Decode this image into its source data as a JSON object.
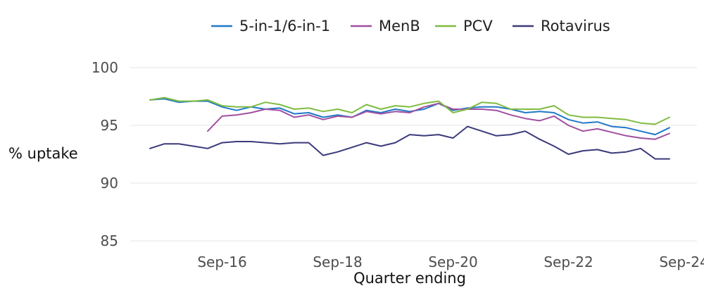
{
  "chart_data": {
    "type": "line",
    "xlabel": "Quarter ending",
    "ylabel": "% uptake",
    "ylim": [
      84,
      101
    ],
    "y_ticks": [
      85,
      90,
      95,
      100
    ],
    "x_ticks": [
      "Sep-16",
      "Sep-18",
      "Sep-20",
      "Sep-22",
      "Sep-24"
    ],
    "grid": "horizontal",
    "legend_position": "top",
    "quarters": [
      "Jun-15",
      "Sep-15",
      "Dec-15",
      "Mar-16",
      "Jun-16",
      "Sep-16",
      "Dec-16",
      "Mar-17",
      "Jun-17",
      "Sep-17",
      "Dec-17",
      "Mar-18",
      "Jun-18",
      "Sep-18",
      "Dec-18",
      "Mar-19",
      "Jun-19",
      "Sep-19",
      "Dec-19",
      "Mar-20",
      "Jun-20",
      "Sep-20",
      "Dec-20",
      "Mar-21",
      "Jun-21",
      "Sep-21",
      "Dec-21",
      "Mar-22",
      "Jun-22",
      "Sep-22",
      "Dec-22",
      "Mar-23",
      "Jun-23",
      "Sep-23",
      "Dec-23",
      "Mar-24",
      "Jun-24",
      "Sep-24"
    ],
    "series": [
      {
        "name": "5-in-1/6-in-1",
        "color": "#1f78c8",
        "values": [
          97.2,
          97.3,
          97.0,
          97.1,
          97.1,
          96.6,
          96.3,
          96.6,
          96.4,
          96.5,
          96.0,
          96.1,
          95.7,
          95.9,
          95.7,
          96.3,
          96.1,
          96.4,
          96.2,
          96.4,
          96.9,
          96.3,
          96.5,
          96.6,
          96.6,
          96.4,
          96.1,
          96.2,
          96.1,
          95.5,
          95.2,
          95.3,
          94.9,
          94.8,
          94.5,
          94.2,
          94.8,
          null
        ]
      },
      {
        "name": "MenB",
        "color": "#a04fa0",
        "values": [
          null,
          null,
          null,
          null,
          94.5,
          95.8,
          95.9,
          96.1,
          96.4,
          96.3,
          95.7,
          95.9,
          95.5,
          95.8,
          95.7,
          96.2,
          96.0,
          96.2,
          96.1,
          96.6,
          96.9,
          96.4,
          96.4,
          96.4,
          96.3,
          95.9,
          95.6,
          95.4,
          95.8,
          95.0,
          94.5,
          94.7,
          94.4,
          94.1,
          93.9,
          93.8,
          94.3,
          null
        ]
      },
      {
        "name": "PCV",
        "color": "#7fbc41",
        "values": [
          97.2,
          97.4,
          97.1,
          97.1,
          97.2,
          96.7,
          96.6,
          96.6,
          97.0,
          96.8,
          96.4,
          96.5,
          96.2,
          96.4,
          96.1,
          96.8,
          96.4,
          96.7,
          96.6,
          96.9,
          97.1,
          96.1,
          96.4,
          97.0,
          96.9,
          96.4,
          96.4,
          96.4,
          96.7,
          95.9,
          95.7,
          95.7,
          95.6,
          95.5,
          95.2,
          95.1,
          95.7,
          null
        ]
      },
      {
        "name": "Rotavirus",
        "color": "#3b3a7a",
        "values": [
          93.0,
          93.4,
          93.4,
          93.2,
          93.0,
          93.5,
          93.6,
          93.6,
          93.5,
          93.4,
          93.5,
          93.5,
          92.4,
          92.7,
          93.1,
          93.5,
          93.2,
          93.5,
          94.2,
          94.1,
          94.2,
          93.9,
          94.9,
          94.5,
          94.1,
          94.2,
          94.5,
          93.8,
          93.2,
          92.5,
          92.8,
          92.9,
          92.6,
          92.7,
          93.0,
          92.1,
          92.1,
          null
        ]
      }
    ]
  }
}
